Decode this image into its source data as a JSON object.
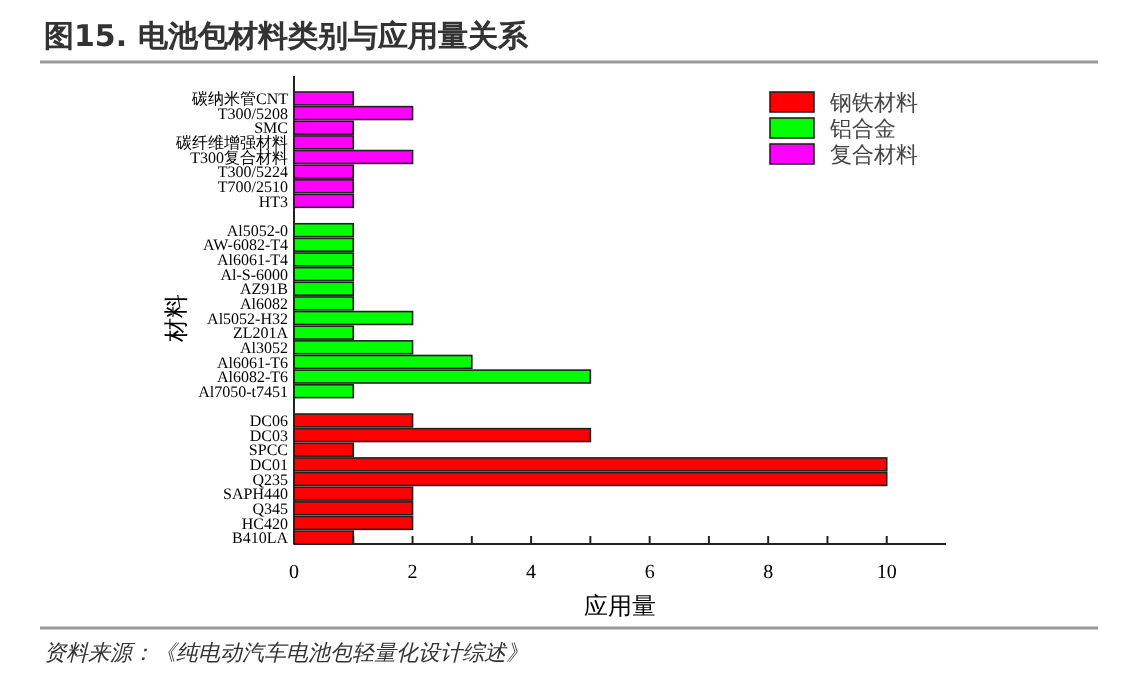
{
  "chart_data": {
    "type": "bar",
    "orientation": "horizontal",
    "title": "图15. 电池包材料类别与应用量关系",
    "xlabel": "应用量",
    "ylabel": "材料",
    "categories": [
      "碳纳米管CNT",
      "T300/5208",
      "SMC",
      "碳纤维增强材料",
      "T300复合材料",
      "T300/5224",
      "T700/2510",
      "HT3",
      null,
      "Al5052-0",
      "AW-6082-T4",
      "Al6061-T4",
      "Al-S-6000",
      "AZ91B",
      "Al6082",
      "Al5052-H32",
      "ZL201A",
      "Al3052",
      "Al6061-T6",
      "Al6082-T6",
      "Al7050-t7451",
      null,
      "DC06",
      "DC03",
      "SPCC",
      "DC01",
      "Q235",
      "SAPH440",
      "Q345",
      "HC420",
      "B410LA"
    ],
    "series": [
      {
        "name": "钢铁材料",
        "color": "#ff0000",
        "values": [
          null,
          null,
          null,
          null,
          null,
          null,
          null,
          null,
          null,
          null,
          null,
          null,
          null,
          null,
          null,
          null,
          null,
          null,
          null,
          null,
          null,
          null,
          2,
          5,
          1,
          10,
          10,
          2,
          2,
          2,
          1
        ]
      },
      {
        "name": "铝合金",
        "color": "#00ff00",
        "values": [
          null,
          null,
          null,
          null,
          null,
          null,
          null,
          null,
          null,
          1,
          1,
          1,
          1,
          1,
          1,
          2,
          1,
          2,
          3,
          5,
          1,
          null,
          null,
          null,
          null,
          null,
          null,
          null,
          null,
          null,
          null
        ]
      },
      {
        "name": "复合材料",
        "color": "#ff00ff",
        "values": [
          1,
          2,
          1,
          1,
          2,
          1,
          1,
          1,
          null,
          null,
          null,
          null,
          null,
          null,
          null,
          null,
          null,
          null,
          null,
          null,
          null,
          null,
          null,
          null,
          null,
          null,
          null,
          null,
          null,
          null,
          null
        ]
      }
    ],
    "xlim": [
      0,
      11
    ],
    "xticks": [
      0,
      {
        "value": 1,
        "label": null
      },
      2,
      {
        "value": 3,
        "label": null
      },
      4,
      {
        "value": 5,
        "label": null
      },
      6,
      {
        "value": 7,
        "label": null
      },
      8,
      {
        "value": 9,
        "label": null
      },
      10
    ],
    "legend": "top right",
    "annotations": [
      "资料来源：《纯电动汽车电池包轻量化设计综述》"
    ]
  }
}
